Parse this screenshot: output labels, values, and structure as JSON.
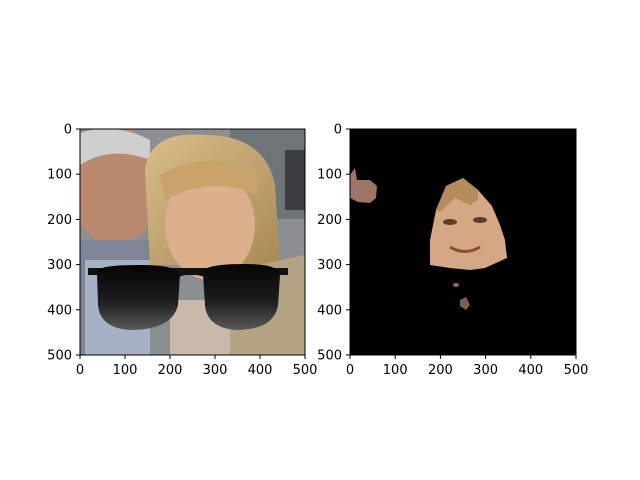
{
  "chart_data": [
    {
      "type": "image",
      "title": "",
      "xlabel": "",
      "ylabel": "",
      "xlim": [
        0,
        500
      ],
      "ylim": [
        500,
        0
      ],
      "xticks": [
        0,
        100,
        200,
        300,
        400,
        500
      ],
      "yticks": [
        0,
        100,
        200,
        300,
        400,
        500
      ],
      "content": "photo of two people; woman wearing overlaid black sunglasses"
    },
    {
      "type": "image",
      "title": "",
      "xlabel": "",
      "ylabel": "",
      "xlim": [
        0,
        500
      ],
      "ylim": [
        500,
        0
      ],
      "xticks": [
        0,
        100,
        200,
        300,
        400,
        500
      ],
      "yticks": [
        0,
        100,
        200,
        300,
        400,
        500
      ],
      "content": "black background with segmented skin / face regions visible"
    }
  ]
}
